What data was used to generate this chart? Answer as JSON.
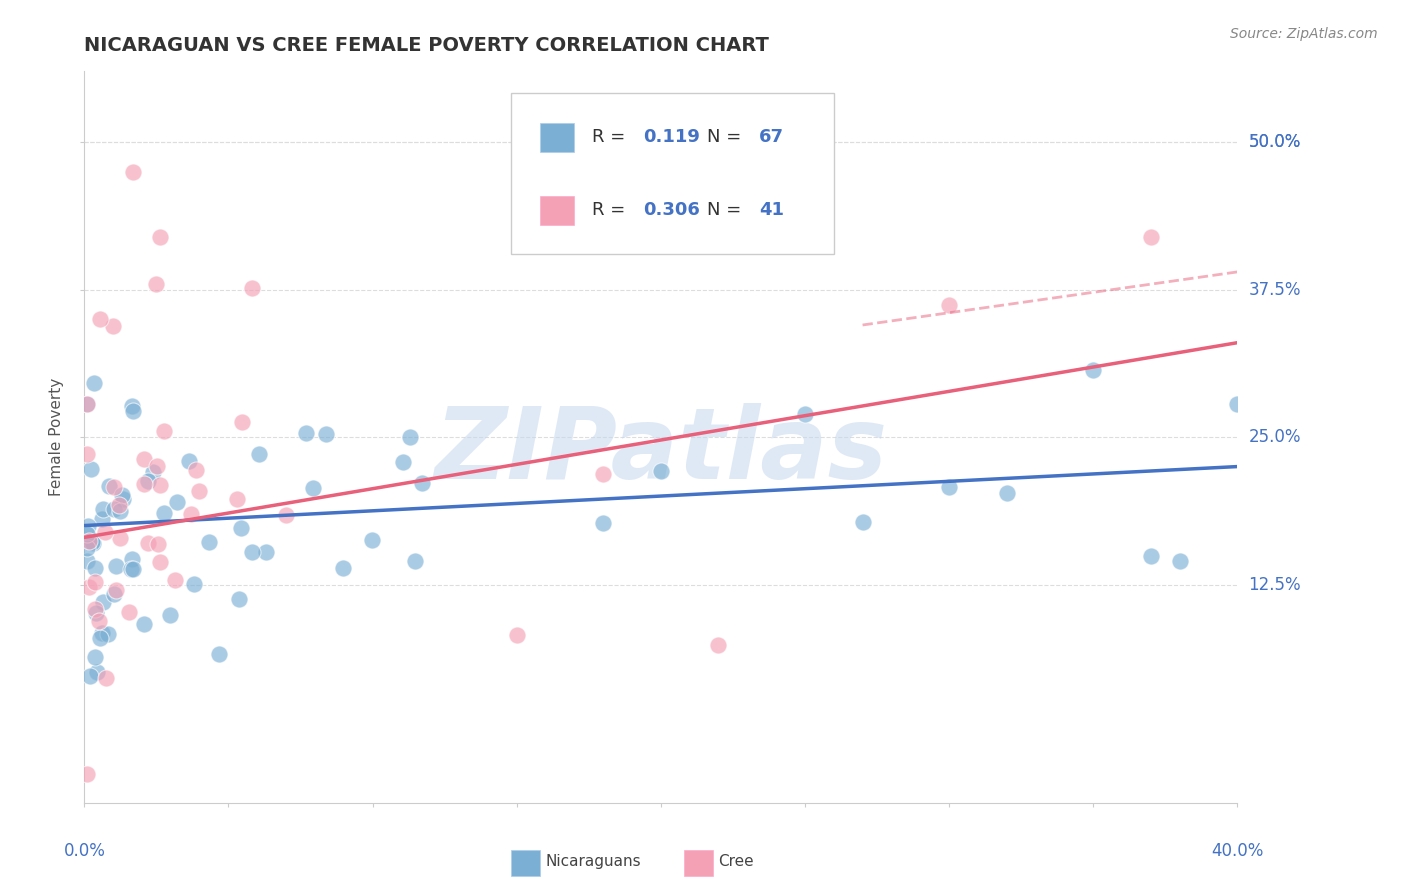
{
  "title": "NICARAGUAN VS CREE FEMALE POVERTY CORRELATION CHART",
  "source": "Source: ZipAtlas.com",
  "ylabel": "Female Poverty",
  "ytick_labels": [
    "12.5%",
    "25.0%",
    "37.5%",
    "50.0%"
  ],
  "ytick_values": [
    0.125,
    0.25,
    0.375,
    0.5
  ],
  "y50_label": "50.0%",
  "legend_labels": [
    "Nicaraguans",
    "Cree"
  ],
  "legend_r": [
    "0.119",
    "0.306"
  ],
  "legend_n": [
    "67",
    "41"
  ],
  "blue_scatter_color": "#7BAFD4",
  "pink_scatter_color": "#F4A0B5",
  "blue_line_color": "#4472C4",
  "pink_line_color": "#E8607A",
  "dashed_line_color": "#E8607A",
  "text_color": "#4472C4",
  "background_color": "#FFFFFF",
  "watermark_text": "ZIPatlas",
  "watermark_color": "#C5D8EE",
  "xlim": [
    0.0,
    0.4
  ],
  "ylim": [
    -0.06,
    0.56
  ],
  "blue_line": {
    "x0": 0.0,
    "y0": 0.175,
    "x1": 0.4,
    "y1": 0.225
  },
  "pink_line": {
    "x0": 0.0,
    "y0": 0.165,
    "x1": 0.4,
    "y1": 0.33
  },
  "dash_line": {
    "x0": 0.27,
    "x1": 0.4,
    "y0": 0.345,
    "y1": 0.39
  },
  "grid_color": "#DDDDDD",
  "spine_color": "#CCCCCC",
  "title_fontsize": 14,
  "source_fontsize": 10,
  "tick_label_fontsize": 12,
  "ylabel_fontsize": 11
}
